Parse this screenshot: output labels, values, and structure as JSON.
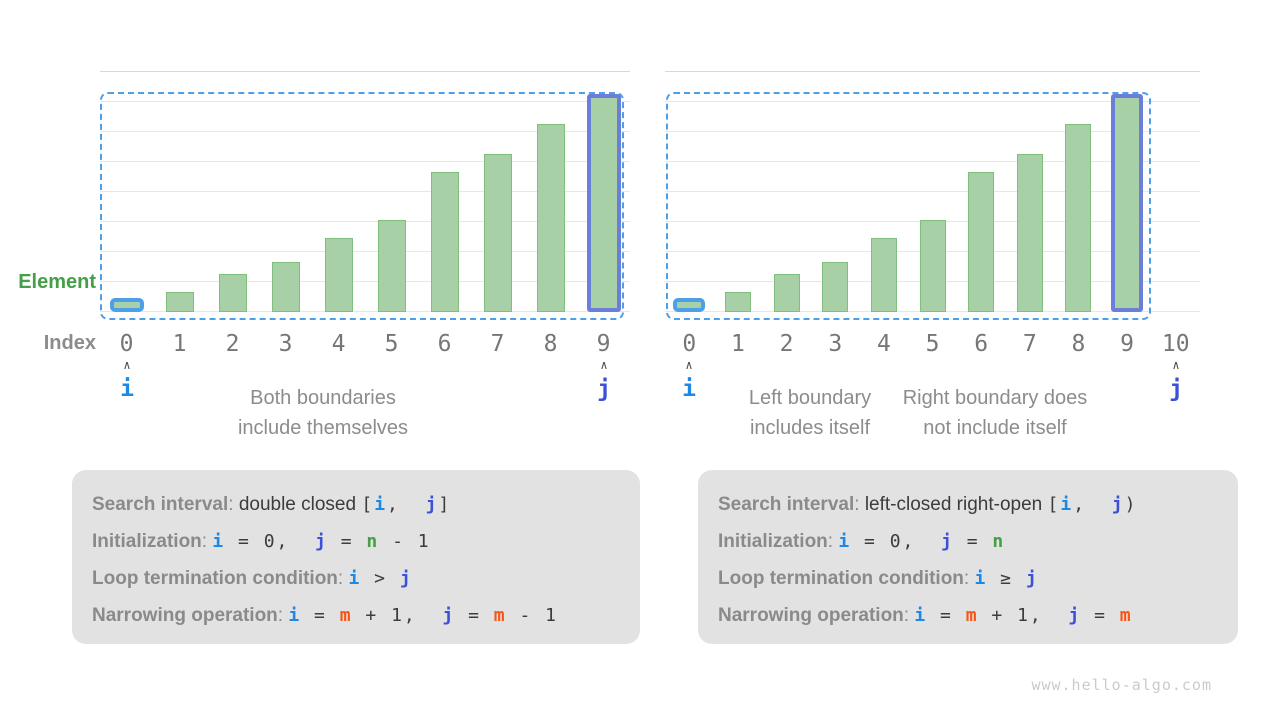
{
  "labels": {
    "element": "Element",
    "index": "Index"
  },
  "pointers": {
    "i": "i",
    "j": "j",
    "caret": "∧"
  },
  "colors": {
    "i_blue": "#1E88E5",
    "j_indigo": "#3D51D8",
    "m_orange": "#F65314",
    "n_green": "#43A047",
    "bar_fill": "#A8D0A6",
    "bar_border": "#7FBE7D",
    "dashed_box_blue": "#4C9FE8",
    "bar_i_highlight_border": "#4C9FE8",
    "bar_j_highlight_border": "#6B7FD8",
    "box_bg": "#E2E2E2"
  },
  "chart_data": [
    {
      "type": "bar",
      "categories": [
        "0",
        "1",
        "2",
        "3",
        "4",
        "5",
        "6",
        "7",
        "8",
        "9"
      ],
      "values": [
        1,
        3,
        6,
        8,
        12,
        15,
        23,
        26,
        31,
        35
      ],
      "ylim": [
        0,
        40
      ],
      "gridline_step": 5,
      "grid": true,
      "highlight_i": "0",
      "highlight_j": "9",
      "pointer_i_index": "0",
      "pointer_j_index": "9"
    },
    {
      "type": "bar",
      "categories": [
        "0",
        "1",
        "2",
        "3",
        "4",
        "5",
        "6",
        "7",
        "8",
        "9",
        "10"
      ],
      "values": [
        1,
        3,
        6,
        8,
        12,
        15,
        23,
        26,
        31,
        35,
        null
      ],
      "ylim": [
        0,
        40
      ],
      "gridline_step": 5,
      "grid": true,
      "highlight_i": "0",
      "highlight_j": "9",
      "pointer_i_index": "0",
      "pointer_j_index": "10"
    }
  ],
  "captions": {
    "left": [
      "Both boundaries",
      "include themselves"
    ],
    "right_1": [
      "Left boundary",
      "includes itself"
    ],
    "right_2": [
      "Right boundary does",
      "not include itself"
    ]
  },
  "info_boxes": [
    {
      "lines": [
        [
          {
            "s": "label",
            "t": "Search interval"
          },
          {
            "s": "colon",
            "t": ": "
          },
          {
            "s": "text",
            "t": "double closed "
          },
          {
            "s": "code",
            "t": "["
          },
          {
            "s": "i",
            "t": "i"
          },
          {
            "s": "code",
            "t": ",  "
          },
          {
            "s": "j",
            "t": "j"
          },
          {
            "s": "code",
            "t": "]"
          }
        ],
        [
          {
            "s": "label",
            "t": "Initialization"
          },
          {
            "s": "colon",
            "t": ": "
          },
          {
            "s": "i",
            "t": "i"
          },
          {
            "s": "code",
            "t": " = 0,  "
          },
          {
            "s": "j",
            "t": "j"
          },
          {
            "s": "code",
            "t": " = "
          },
          {
            "s": "n",
            "t": "n"
          },
          {
            "s": "code",
            "t": " - 1"
          }
        ],
        [
          {
            "s": "label",
            "t": "Loop termination condition"
          },
          {
            "s": "colon",
            "t": ": "
          },
          {
            "s": "i",
            "t": "i"
          },
          {
            "s": "code",
            "t": " > "
          },
          {
            "s": "j",
            "t": "j"
          }
        ],
        [
          {
            "s": "label",
            "t": "Narrowing operation"
          },
          {
            "s": "colon",
            "t": ": "
          },
          {
            "s": "i",
            "t": "i"
          },
          {
            "s": "code",
            "t": " = "
          },
          {
            "s": "m",
            "t": "m"
          },
          {
            "s": "code",
            "t": " + 1,  "
          },
          {
            "s": "j",
            "t": "j"
          },
          {
            "s": "code",
            "t": " = "
          },
          {
            "s": "m",
            "t": "m"
          },
          {
            "s": "code",
            "t": " - 1"
          }
        ]
      ]
    },
    {
      "lines": [
        [
          {
            "s": "label",
            "t": "Search interval"
          },
          {
            "s": "colon",
            "t": ": "
          },
          {
            "s": "text",
            "t": "left-closed right-open "
          },
          {
            "s": "code",
            "t": "["
          },
          {
            "s": "i",
            "t": "i"
          },
          {
            "s": "code",
            "t": ",  "
          },
          {
            "s": "j",
            "t": "j"
          },
          {
            "s": "code",
            "t": ")"
          }
        ],
        [
          {
            "s": "label",
            "t": "Initialization"
          },
          {
            "s": "colon",
            "t": ": "
          },
          {
            "s": "i",
            "t": "i"
          },
          {
            "s": "code",
            "t": " = 0,  "
          },
          {
            "s": "j",
            "t": "j"
          },
          {
            "s": "code",
            "t": " = "
          },
          {
            "s": "n",
            "t": "n"
          }
        ],
        [
          {
            "s": "label",
            "t": "Loop termination condition"
          },
          {
            "s": "colon",
            "t": ": "
          },
          {
            "s": "i",
            "t": "i"
          },
          {
            "s": "code",
            "t": " ≥ "
          },
          {
            "s": "j",
            "t": "j"
          }
        ],
        [
          {
            "s": "label",
            "t": "Narrowing operation"
          },
          {
            "s": "colon",
            "t": ": "
          },
          {
            "s": "i",
            "t": "i"
          },
          {
            "s": "code",
            "t": " = "
          },
          {
            "s": "m",
            "t": "m"
          },
          {
            "s": "code",
            "t": " + 1,  "
          },
          {
            "s": "j",
            "t": "j"
          },
          {
            "s": "code",
            "t": " = "
          },
          {
            "s": "m",
            "t": "m"
          }
        ]
      ]
    }
  ],
  "watermark": "www.hello-algo.com"
}
